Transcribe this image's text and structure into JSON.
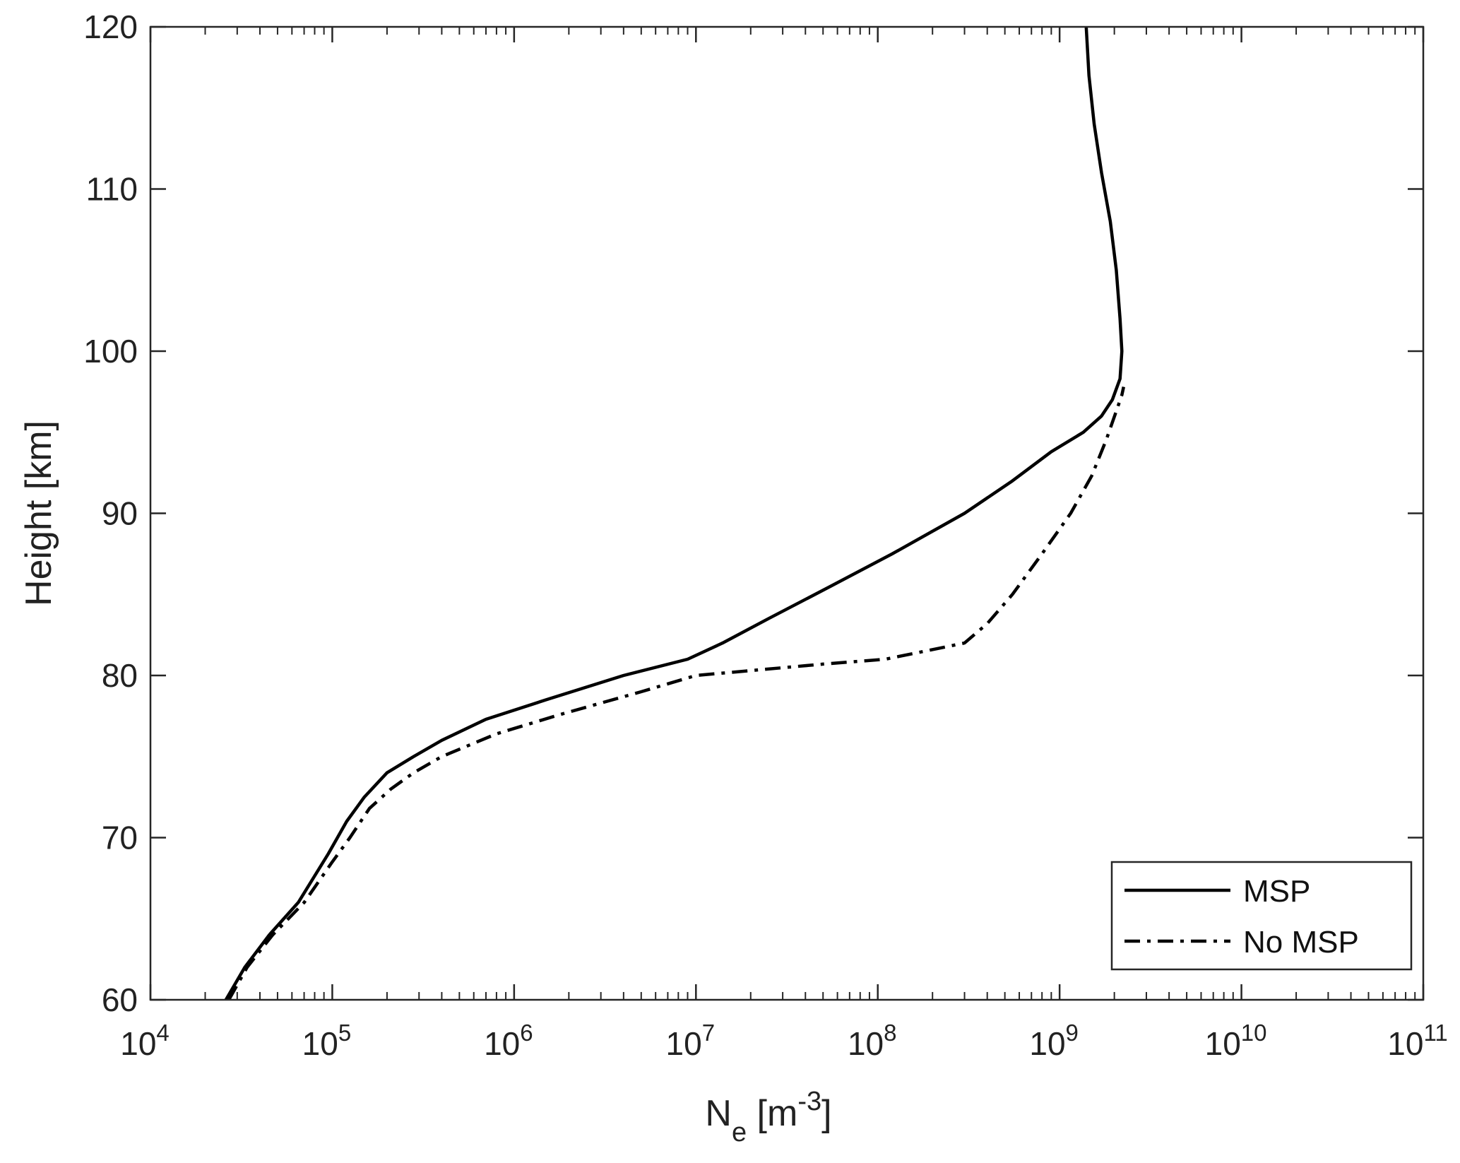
{
  "chart_data": {
    "type": "line",
    "title": "",
    "xlabel": {
      "base": "N",
      "subscript": "e",
      "unit_open": " [m",
      "unit_exp": "-3",
      "unit_close": "]"
    },
    "ylabel": "Height [km]",
    "xscale": "log",
    "xlim": [
      10000,
      100000000000
    ],
    "ylim": [
      60,
      120
    ],
    "x_ticks": [
      {
        "base": "10",
        "exp": "4",
        "value": 10000
      },
      {
        "base": "10",
        "exp": "5",
        "value": 100000
      },
      {
        "base": "10",
        "exp": "6",
        "value": 1000000
      },
      {
        "base": "10",
        "exp": "7",
        "value": 10000000
      },
      {
        "base": "10",
        "exp": "8",
        "value": 100000000
      },
      {
        "base": "10",
        "exp": "9",
        "value": 1000000000
      },
      {
        "base": "10",
        "exp": "10",
        "value": 10000000000
      },
      {
        "base": "10",
        "exp": "11",
        "value": 100000000000
      }
    ],
    "y_ticks": [
      "60",
      "70",
      "80",
      "90",
      "100",
      "110",
      "120"
    ],
    "grid": false,
    "legend_position": "bottom-right",
    "series": [
      {
        "name": "MSP",
        "style": "solid",
        "color": "#000000",
        "points": [
          [
            26000,
            60
          ],
          [
            33000,
            62
          ],
          [
            45000,
            64
          ],
          [
            65000,
            66
          ],
          [
            95000,
            69
          ],
          [
            120000,
            71
          ],
          [
            150000,
            72.5
          ],
          [
            200000,
            74
          ],
          [
            280000,
            75
          ],
          [
            400000,
            76
          ],
          [
            700000,
            77.3
          ],
          [
            1500000,
            78.5
          ],
          [
            4000000,
            80
          ],
          [
            9000000,
            81
          ],
          [
            14000000,
            82
          ],
          [
            25000000,
            83.5
          ],
          [
            55000000,
            85.5
          ],
          [
            120000000,
            87.5
          ],
          [
            300000000,
            90
          ],
          [
            550000000,
            92
          ],
          [
            900000000,
            93.8
          ],
          [
            1350000000,
            95
          ],
          [
            1700000000,
            96
          ],
          [
            1950000000,
            97
          ],
          [
            2150000000,
            98.3
          ],
          [
            2200000000,
            100
          ],
          [
            2150000000,
            102
          ],
          [
            2050000000,
            105
          ],
          [
            1900000000,
            108
          ],
          [
            1700000000,
            111
          ],
          [
            1550000000,
            114
          ],
          [
            1450000000,
            117
          ],
          [
            1400000000,
            120
          ]
        ]
      },
      {
        "name": "No MSP",
        "style": "dashdot",
        "color": "#000000",
        "points": [
          [
            27000,
            60
          ],
          [
            34000,
            62
          ],
          [
            47000,
            64
          ],
          [
            70000,
            66
          ],
          [
            100000,
            68.5
          ],
          [
            125000,
            70
          ],
          [
            160000,
            71.8
          ],
          [
            210000,
            73
          ],
          [
            280000,
            74
          ],
          [
            400000,
            75
          ],
          [
            800000,
            76.4
          ],
          [
            1800000,
            77.6
          ],
          [
            5000000,
            79
          ],
          [
            10000000,
            80
          ],
          [
            20000000,
            80.3
          ],
          [
            50000000,
            80.7
          ],
          [
            110000000,
            81
          ],
          [
            300000000,
            82
          ],
          [
            400000000,
            83.2
          ],
          [
            550000000,
            85
          ],
          [
            800000000,
            87.5
          ],
          [
            1150000000,
            90
          ],
          [
            1500000000,
            92.3
          ],
          [
            1800000000,
            94.5
          ],
          [
            2050000000,
            96.3
          ],
          [
            2200000000,
            97.3
          ],
          [
            2250000000,
            97.8
          ]
        ]
      }
    ]
  }
}
